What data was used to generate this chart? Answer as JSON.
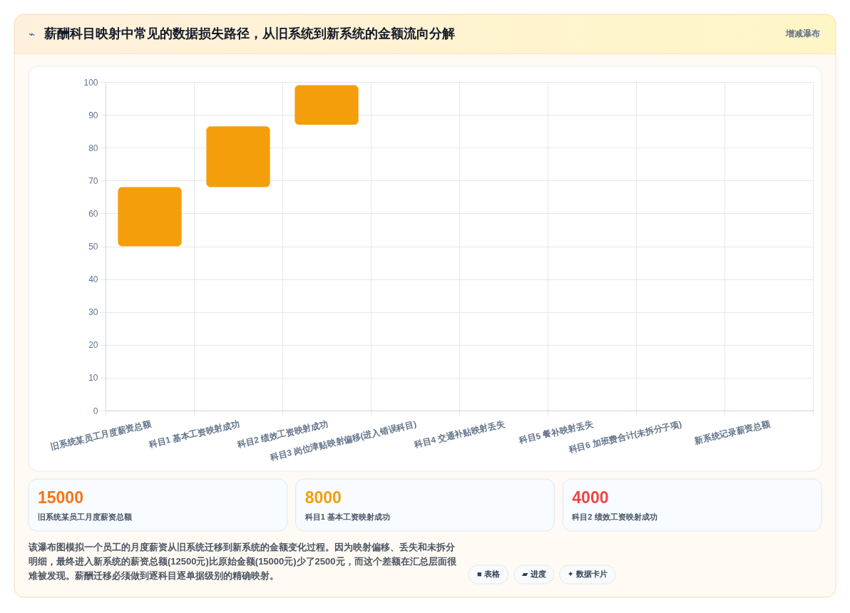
{
  "chart_data": [
    {
      "type": "bar",
      "title": "薪酬科目映射中常见的数据损失路径，从旧系统到新系统的金额流向分解",
      "annotations": [
        "⌁",
        "增减瀑布",
        "该瀑布图模拟一个员工的月度薪资从旧系统迁移到新系统的金额变化过程。因为映射偏移、丢失和未拆分明细，最终进入新系统的薪资总额(12500元)比原始金额(15000元)少了2500元，而这个差额在汇总层面很难被发现。薪酬迁移必须做到逐科目逐单据级别的精确映射。",
        "■ 表格",
        "▰ 进度",
        "✦ 数据卡片"
      ],
      "categories": [
        "旧系统某员工月度薪资总额",
        "科目1 基本工资映射成功",
        "科目2 绩效工资映射成功",
        "科目3 岗位津贴映射偏移(进入错误科目)",
        "科目4 交通补贴映射丢失",
        "科目5 餐补映射丢失",
        "科目6 加班费合计(未拆分子项)",
        "新系统记录薪资总额"
      ],
      "values": [
        18,
        18.5,
        12,
        null,
        null,
        null,
        null,
        null
      ],
      "base": [
        50,
        68,
        87,
        null,
        null,
        null,
        null,
        null
      ],
      "color": "#f59e0b",
      "ylim": [
        0,
        100
      ],
      "yticks": [
        0,
        10,
        20,
        30,
        40,
        50,
        60,
        70,
        80,
        90,
        100
      ],
      "grid": true
    },
    {
      "type": "other",
      "annotations": [
        "15000",
        "旧系统某员工月度薪资总额",
        "8000",
        "科目1 基本工资映射成功",
        "4000",
        "科目2 绩效工资映射成功"
      ]
    }
  ]
}
